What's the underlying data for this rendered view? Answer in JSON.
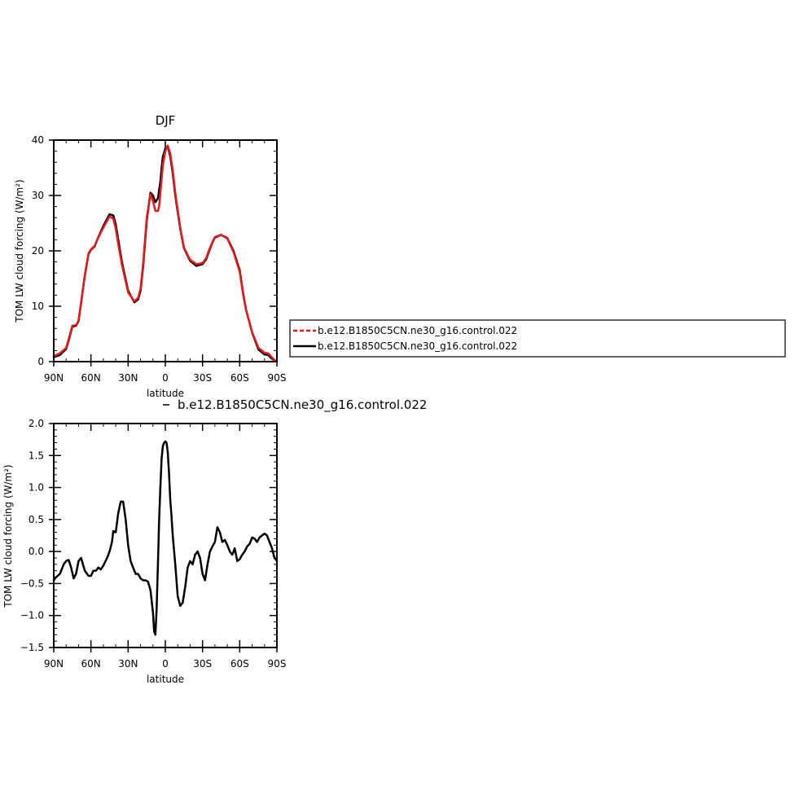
{
  "chart_data": [
    {
      "type": "line",
      "title": "DJF",
      "xlabel": "latitude",
      "ylabel": "TOM LW cloud forcing (W/m²)",
      "xlim": [
        90,
        -90
      ],
      "ylim": [
        0,
        40
      ],
      "x_ticks": [
        90,
        60,
        30,
        0,
        -30,
        -60,
        -90
      ],
      "x_tick_labels": [
        "90N",
        "60N",
        "30N",
        "0",
        "30S",
        "60S",
        "90S"
      ],
      "y_ticks": [
        0,
        10,
        20,
        30,
        40
      ],
      "y_tick_labels": [
        "0",
        "10",
        "20",
        "30",
        "40"
      ],
      "legend": {
        "placement": "right",
        "entries": [
          {
            "label": "b.e12.B1850C5CN.ne30_g16.control.022",
            "color": "#e41a1c",
            "style": "dashed"
          },
          {
            "label": "b.e12.B1850C5CN.ne30_g16.control.022",
            "color": "#000000",
            "style": "solid"
          }
        ]
      },
      "series": [
        {
          "color": "#000000",
          "x": [
            90,
            85,
            80,
            78,
            75,
            72,
            70,
            68,
            65,
            62,
            60,
            57,
            55,
            50,
            45,
            42,
            40,
            38,
            35,
            30,
            25,
            22,
            20,
            18,
            15,
            12,
            10,
            8,
            6,
            5,
            4,
            3,
            2,
            0,
            -2,
            -4,
            -6,
            -8,
            -10,
            -12,
            -15,
            -20,
            -25,
            -30,
            -33,
            -35,
            -38,
            -40,
            -45,
            -50,
            -55,
            -60,
            -63,
            -65,
            -70,
            -75,
            -80,
            -83,
            -85,
            -88,
            -90
          ],
          "y": [
            0.8,
            1.2,
            2.3,
            3.8,
            6.3,
            6.5,
            7.3,
            10.5,
            15.5,
            19.4,
            20.2,
            20.8,
            22.0,
            24.5,
            26.6,
            26.4,
            24.8,
            22.0,
            18.0,
            12.8,
            10.7,
            11.2,
            12.8,
            17.0,
            25.5,
            30.5,
            30.0,
            28.8,
            29.5,
            31.0,
            32.5,
            35.0,
            37.0,
            38.5,
            38.9,
            37.0,
            34.0,
            30.0,
            27.0,
            24.0,
            20.5,
            18.2,
            17.3,
            17.6,
            18.5,
            19.8,
            21.5,
            22.4,
            22.9,
            22.3,
            20.0,
            16.5,
            12.0,
            9.5,
            5.2,
            2.2,
            1.3,
            1.2,
            0.7,
            0.2,
            0.0
          ]
        },
        {
          "color": "#e41a1c",
          "x": [
            90,
            85,
            80,
            78,
            75,
            72,
            70,
            68,
            65,
            62,
            60,
            57,
            55,
            50,
            45,
            42,
            40,
            38,
            35,
            30,
            25,
            22,
            20,
            18,
            15,
            12,
            10,
            8,
            6,
            5,
            4,
            3,
            2,
            0,
            -2,
            -4,
            -6,
            -8,
            -10,
            -12,
            -15,
            -20,
            -25,
            -30,
            -33,
            -35,
            -38,
            -40,
            -45,
            -50,
            -55,
            -60,
            -63,
            -65,
            -70,
            -75,
            -80,
            -83,
            -85,
            -88,
            -90
          ],
          "y": [
            1.0,
            1.5,
            2.5,
            4.0,
            6.5,
            6.6,
            7.4,
            10.6,
            15.5,
            19.5,
            20.3,
            20.9,
            22.0,
            24.2,
            26.2,
            25.8,
            24.0,
            21.2,
            17.5,
            12.5,
            10.9,
            11.5,
            13.2,
            17.5,
            26.0,
            30.2,
            29.0,
            27.2,
            27.2,
            28.0,
            30.5,
            33.0,
            35.5,
            38.0,
            39.0,
            37.5,
            34.5,
            30.5,
            27.3,
            24.2,
            20.6,
            18.4,
            17.6,
            17.8,
            18.7,
            20.0,
            21.6,
            22.5,
            22.9,
            22.2,
            19.8,
            16.2,
            11.8,
            9.4,
            5.3,
            2.5,
            1.6,
            1.5,
            1.0,
            0.3,
            0.0
          ]
        }
      ]
    },
    {
      "type": "line",
      "title": "",
      "xlabel": "latitude",
      "ylabel": "TOM LW cloud forcing (W/m²)",
      "xlim": [
        90,
        -90
      ],
      "ylim": [
        -1.5,
        2.0
      ],
      "x_ticks": [
        90,
        60,
        30,
        0,
        -30,
        -60,
        -90
      ],
      "x_tick_labels": [
        "90N",
        "60N",
        "30N",
        "0",
        "30S",
        "60S",
        "90S"
      ],
      "y_ticks": [
        -1.5,
        -1.0,
        -0.5,
        0.0,
        0.5,
        1.0,
        1.5,
        2.0
      ],
      "y_tick_labels": [
        "−1.5",
        "−1.0",
        "−0.5",
        "0.0",
        "0.5",
        "1.0",
        "1.5",
        "2.0"
      ],
      "legend": {
        "placement": "top",
        "entries": [
          {
            "label": "b.e12.B1850C5CN.ne30_g16.control.022",
            "color": "#000000",
            "style": "solid"
          }
        ]
      },
      "series": [
        {
          "color": "#000000",
          "x": [
            90,
            88,
            85,
            82,
            80,
            78,
            76,
            74,
            72,
            70,
            68,
            65,
            62,
            60,
            58,
            56,
            54,
            52,
            50,
            47,
            45,
            43,
            42,
            40,
            38,
            36,
            34,
            32,
            30,
            28,
            26,
            24,
            22,
            20,
            18,
            16,
            14,
            12,
            10,
            9,
            8,
            7,
            6,
            5,
            4,
            3,
            2,
            1,
            0,
            -1,
            -2,
            -3,
            -4,
            -5,
            -6,
            -8,
            -10,
            -12,
            -14,
            -16,
            -18,
            -20,
            -22,
            -24,
            -26,
            -28,
            -30,
            -32,
            -34,
            -36,
            -38,
            -40,
            -42,
            -44,
            -46,
            -48,
            -50,
            -52,
            -54,
            -56,
            -58,
            -60,
            -62,
            -64,
            -66,
            -68,
            -70,
            -72,
            -74,
            -76,
            -78,
            -80,
            -82,
            -84,
            -86,
            -88,
            -90
          ],
          "y": [
            -0.45,
            -0.4,
            -0.35,
            -0.2,
            -0.15,
            -0.13,
            -0.25,
            -0.42,
            -0.35,
            -0.15,
            -0.1,
            -0.3,
            -0.38,
            -0.38,
            -0.3,
            -0.3,
            -0.25,
            -0.28,
            -0.22,
            -0.1,
            0.0,
            0.15,
            0.32,
            0.3,
            0.6,
            0.78,
            0.78,
            0.5,
            0.1,
            -0.15,
            -0.25,
            -0.35,
            -0.35,
            -0.42,
            -0.45,
            -0.45,
            -0.47,
            -0.6,
            -0.95,
            -1.25,
            -1.3,
            -0.9,
            -0.2,
            0.5,
            1.0,
            1.45,
            1.65,
            1.7,
            1.72,
            1.7,
            1.55,
            1.2,
            0.8,
            0.55,
            0.25,
            -0.2,
            -0.7,
            -0.85,
            -0.8,
            -0.55,
            -0.25,
            -0.15,
            -0.2,
            -0.05,
            0.0,
            -0.1,
            -0.35,
            -0.45,
            -0.2,
            0.0,
            0.08,
            0.15,
            0.38,
            0.3,
            0.15,
            0.18,
            0.1,
            0.0,
            -0.05,
            0.05,
            -0.15,
            -0.12,
            -0.05,
            0.0,
            0.08,
            0.12,
            0.22,
            0.2,
            0.15,
            0.22,
            0.25,
            0.28,
            0.25,
            0.15,
            0.05,
            -0.1,
            -0.15
          ]
        }
      ]
    }
  ]
}
